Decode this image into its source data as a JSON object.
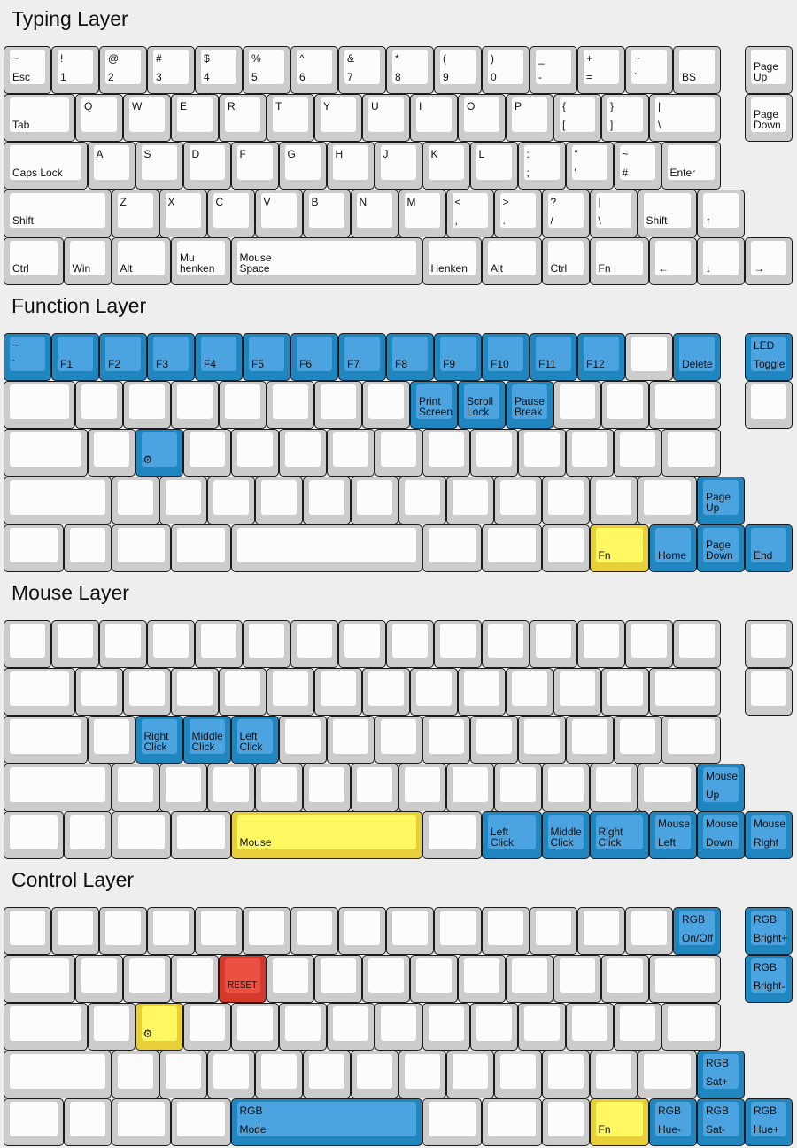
{
  "colors": {
    "background": "#eeeeee",
    "grey": {
      "outer": "#cccccc",
      "inner": "#fcfcfc"
    },
    "blue": {
      "outer": "#1f86c0",
      "inner": "#4ba3df"
    },
    "yellow": {
      "outer": "#e8cf3a",
      "inner": "#fff860"
    },
    "red": {
      "outer": "#d33a2c",
      "inner": "#ea5142"
    }
  },
  "layers": [
    {
      "title": "Typing Layer",
      "rows": [
        [
          {
            "t": "~",
            "b": "Esc"
          },
          {
            "t": "!",
            "b": "1"
          },
          {
            "t": "@",
            "b": "2"
          },
          {
            "t": "#",
            "b": "3"
          },
          {
            "t": "$",
            "b": "4"
          },
          {
            "t": "%",
            "b": "5"
          },
          {
            "t": "^",
            "b": "6"
          },
          {
            "t": "&",
            "b": "7"
          },
          {
            "t": "*",
            "b": "8"
          },
          {
            "t": "(",
            "b": "9"
          },
          {
            "t": ")",
            "b": "0"
          },
          {
            "t": "_",
            "b": "-"
          },
          {
            "t": "+",
            "b": "="
          },
          {
            "t": "~",
            "b": "`"
          },
          {
            "b": "BS"
          },
          {
            "b": "Page\nUp"
          }
        ],
        [
          {
            "b": "Tab"
          },
          {
            "t": "Q"
          },
          {
            "t": "W"
          },
          {
            "t": "E"
          },
          {
            "t": "R"
          },
          {
            "t": "T"
          },
          {
            "t": "Y"
          },
          {
            "t": "U"
          },
          {
            "t": "I"
          },
          {
            "t": "O"
          },
          {
            "t": "P"
          },
          {
            "t": "{",
            "b": "["
          },
          {
            "t": "}",
            "b": "]"
          },
          {
            "t": "|",
            "b": "\\"
          },
          {
            "b": "Page\nDown"
          }
        ],
        [
          {
            "b": "Caps Lock"
          },
          {
            "t": "A"
          },
          {
            "t": "S"
          },
          {
            "t": "D"
          },
          {
            "t": "F"
          },
          {
            "t": "G"
          },
          {
            "t": "H"
          },
          {
            "t": "J"
          },
          {
            "t": "K"
          },
          {
            "t": "L"
          },
          {
            "t": ":",
            "b": ";"
          },
          {
            "t": "\"",
            "b": "'"
          },
          {
            "t": "~",
            "b": "#"
          },
          {
            "b": "Enter"
          }
        ],
        [
          {
            "b": "Shift"
          },
          {
            "t": "Z"
          },
          {
            "t": "X"
          },
          {
            "t": "C"
          },
          {
            "t": "V"
          },
          {
            "t": "B"
          },
          {
            "t": "N"
          },
          {
            "t": "M"
          },
          {
            "t": "<",
            "b": ","
          },
          {
            "t": ">",
            "b": "."
          },
          {
            "t": "?",
            "b": "/"
          },
          {
            "t": "|",
            "b": "\\"
          },
          {
            "b": "Shift"
          },
          {
            "b": "↑"
          }
        ],
        [
          {
            "b": "Ctrl"
          },
          {
            "b": "Win"
          },
          {
            "b": "Alt"
          },
          {
            "b": "Mu\nhenken"
          },
          {
            "b": "Mouse\nSpace"
          },
          {
            "b": "Henken"
          },
          {
            "b": "Alt"
          },
          {
            "b": "Ctrl"
          },
          {
            "b": "Fn"
          },
          {
            "b": "←"
          },
          {
            "b": "↓"
          },
          {
            "b": "→"
          }
        ]
      ]
    },
    {
      "title": "Function Layer",
      "rows": [
        [
          {
            "t": "~",
            "b": "`",
            "c": "blue"
          },
          {
            "b": "F1",
            "c": "blue"
          },
          {
            "b": "F2",
            "c": "blue"
          },
          {
            "b": "F3",
            "c": "blue"
          },
          {
            "b": "F4",
            "c": "blue"
          },
          {
            "b": "F5",
            "c": "blue"
          },
          {
            "b": "F6",
            "c": "blue"
          },
          {
            "b": "F7",
            "c": "blue"
          },
          {
            "b": "F8",
            "c": "blue"
          },
          {
            "b": "F9",
            "c": "blue"
          },
          {
            "b": "F10",
            "c": "blue"
          },
          {
            "b": "F11",
            "c": "blue"
          },
          {
            "b": "F12",
            "c": "blue"
          },
          {},
          {
            "b": "Delete",
            "c": "blue"
          },
          {
            "t": "LED",
            "b": "Toggle",
            "c": "blue"
          }
        ],
        [
          {},
          {},
          {},
          {},
          {},
          {},
          {},
          {},
          {
            "b": "Print\nScreen",
            "c": "blue"
          },
          {
            "b": "Scroll\nLock",
            "c": "blue"
          },
          {
            "b": "Pause\nBreak",
            "c": "blue"
          },
          {},
          {},
          {},
          {}
        ],
        [
          {},
          {},
          {
            "icon": "gear",
            "c": "blue"
          },
          {},
          {},
          {},
          {},
          {},
          {},
          {},
          {},
          {},
          {},
          {}
        ],
        [
          {},
          {},
          {},
          {},
          {},
          {},
          {},
          {},
          {},
          {},
          {},
          {},
          {},
          {
            "b": "Page\nUp",
            "c": "blue"
          }
        ],
        [
          {},
          {},
          {},
          {},
          {},
          {},
          {},
          {},
          {
            "b": "Fn",
            "c": "yellow"
          },
          {
            "b": "Home",
            "c": "blue"
          },
          {
            "b": "Page\nDown",
            "c": "blue"
          },
          {
            "b": "End",
            "c": "blue"
          }
        ]
      ]
    },
    {
      "title": "Mouse Layer",
      "rows": [
        [
          {},
          {},
          {},
          {},
          {},
          {},
          {},
          {},
          {},
          {},
          {},
          {},
          {},
          {},
          {},
          {}
        ],
        [
          {},
          {},
          {},
          {},
          {},
          {},
          {},
          {},
          {},
          {},
          {},
          {},
          {},
          {},
          {}
        ],
        [
          {},
          {},
          {
            "b": "Right\nClick",
            "c": "blue"
          },
          {
            "b": "Middle\nClick",
            "c": "blue"
          },
          {
            "b": "Left\nClick",
            "c": "blue"
          },
          {},
          {},
          {},
          {},
          {},
          {},
          {},
          {},
          {}
        ],
        [
          {},
          {},
          {},
          {},
          {},
          {},
          {},
          {},
          {},
          {},
          {},
          {},
          {},
          {
            "t": "Mouse",
            "b": "Up",
            "c": "blue"
          }
        ],
        [
          {},
          {},
          {},
          {},
          {
            "b": "Mouse",
            "c": "yellow"
          },
          {},
          {
            "b": "Left\nClick",
            "c": "blue"
          },
          {
            "b": "Middle\nClick",
            "c": "blue"
          },
          {
            "b": "Right\nClick",
            "c": "blue"
          },
          {
            "t": "Mouse",
            "b": "Left",
            "c": "blue"
          },
          {
            "t": "Mouse",
            "b": "Down",
            "c": "blue"
          },
          {
            "t": "Mouse",
            "b": "Right",
            "c": "blue"
          }
        ]
      ]
    },
    {
      "title": "Control Layer",
      "rows": [
        [
          {},
          {},
          {},
          {},
          {},
          {},
          {},
          {},
          {},
          {},
          {},
          {},
          {},
          {},
          {
            "t": "RGB",
            "b": "On/Off",
            "c": "blue"
          },
          {
            "t": "RGB",
            "b": "Bright+",
            "c": "blue"
          }
        ],
        [
          {},
          {},
          {},
          {},
          {
            "b": "RESET",
            "c": "red",
            "small": true
          },
          {},
          {},
          {},
          {},
          {},
          {},
          {},
          {},
          {},
          {
            "t": "RGB",
            "b": "Bright-",
            "c": "blue"
          }
        ],
        [
          {},
          {},
          {
            "icon": "gear",
            "c": "yellow"
          },
          {},
          {},
          {},
          {},
          {},
          {},
          {},
          {},
          {},
          {},
          {}
        ],
        [
          {},
          {},
          {},
          {},
          {},
          {},
          {},
          {},
          {},
          {},
          {},
          {},
          {},
          {
            "t": "RGB",
            "b": "Sat+",
            "c": "blue"
          }
        ],
        [
          {},
          {},
          {},
          {},
          {
            "t": "RGB",
            "b": "Mode",
            "c": "blue"
          },
          {},
          {},
          {},
          {
            "b": "Fn",
            "c": "yellow"
          },
          {
            "t": "RGB",
            "b": "Hue-",
            "c": "blue"
          },
          {
            "t": "RGB",
            "b": "Sat-",
            "c": "blue"
          },
          {
            "t": "RGB",
            "b": "Hue+",
            "c": "blue"
          }
        ]
      ]
    }
  ]
}
